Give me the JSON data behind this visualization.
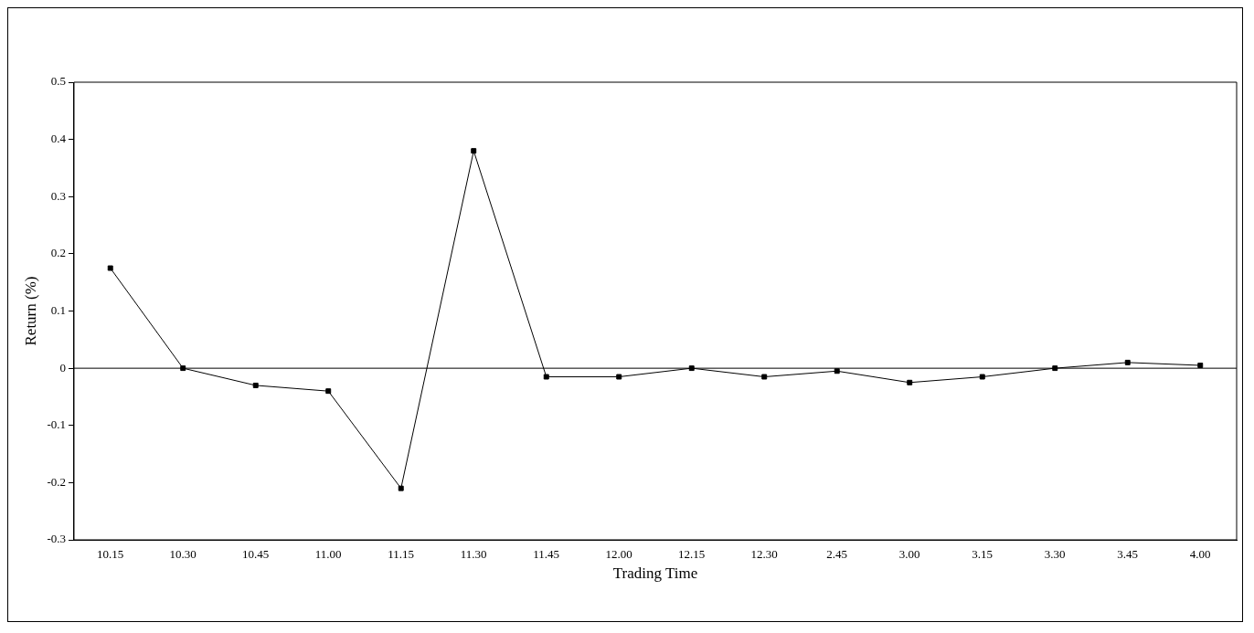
{
  "chart_data": {
    "type": "line",
    "xlabel": "Trading Time",
    "ylabel": "Return (%)",
    "categories": [
      "10.15",
      "10.30",
      "10.45",
      "11.00",
      "11.15",
      "11.30",
      "11.45",
      "12.00",
      "12.15",
      "12.30",
      "2.45",
      "3.00",
      "3.15",
      "3.30",
      "3.45",
      "4.00"
    ],
    "series": [
      {
        "color": "#000000",
        "values": [
          0.175,
          0,
          -0.03,
          -0.04,
          -0.21,
          0.38,
          -0.015,
          -0.015,
          0,
          -0.015,
          -0.005,
          -0.025,
          -0.015,
          0,
          0.01,
          0.005
        ]
      }
    ],
    "ylim": [
      -0.3,
      0.5
    ],
    "yticks": [
      -0.3,
      -0.2,
      -0.1,
      0,
      0.1,
      0.2,
      0.3,
      0.4,
      0.5
    ],
    "ref_lines": [
      {
        "axis": "y",
        "value": 0,
        "color": "#000000"
      }
    ],
    "grid": false,
    "legend": false,
    "marker": "square",
    "line_style": "solid"
  }
}
